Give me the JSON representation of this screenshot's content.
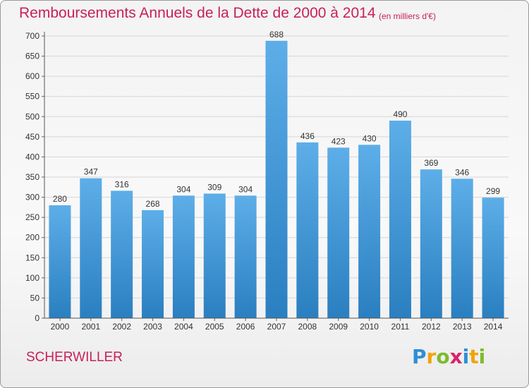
{
  "header": {
    "title": "Remboursements Annuels de la Dette de 2000 à 2014",
    "unit": "(en milliers d'€)"
  },
  "footer": {
    "commune": "SCHERWILLER",
    "brand_letters": [
      {
        "ch": "P",
        "color": "#2e8fd6"
      },
      {
        "ch": "r",
        "color": "#f0a30a"
      },
      {
        "ch": "o",
        "color": "#7dbb2b"
      },
      {
        "ch": "x",
        "color": "#d8256a"
      },
      {
        "ch": "i",
        "color": "#2e8fd6"
      },
      {
        "ch": "t",
        "color": "#f0a30a"
      },
      {
        "ch": "i",
        "color": "#7dbb2b"
      }
    ]
  },
  "chart_data": {
    "type": "bar",
    "title": "Remboursements Annuels de la Dette de 2000 à 2014",
    "subtitle": "(en milliers d'€)",
    "categories": [
      "2000",
      "2001",
      "2002",
      "2003",
      "2004",
      "2005",
      "2006",
      "2007",
      "2008",
      "2009",
      "2010",
      "2011",
      "2012",
      "2013",
      "2014"
    ],
    "values": [
      280,
      347,
      316,
      268,
      304,
      309,
      304,
      688,
      436,
      423,
      430,
      490,
      369,
      346,
      299
    ],
    "ylim": [
      0,
      700
    ],
    "yticks": [
      0,
      50,
      100,
      150,
      200,
      250,
      300,
      350,
      400,
      450,
      500,
      550,
      600,
      650,
      700
    ],
    "grid": true,
    "bar_color_top": "#5daee8",
    "bar_color_bottom": "#2a7fc0",
    "data_labels": true
  }
}
